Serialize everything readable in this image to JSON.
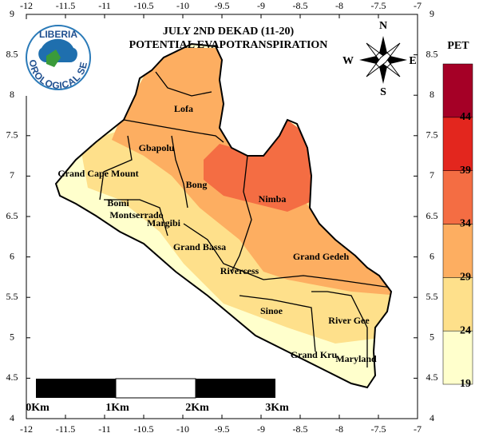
{
  "title": [
    "JULY 2ND DEKAD (11-20)",
    "POTENTIAL EVAPOTRANSPIRATION"
  ],
  "logo": {
    "name": "LIBERIA",
    "subtitle": "METEOROLOGICAL SERVICE"
  },
  "compass": {
    "north": "N",
    "east": "E",
    "south": "S",
    "west": "W"
  },
  "axes": {
    "lon_ticks": [
      -12,
      -11.5,
      -11,
      -10.5,
      -10,
      -9.5,
      -9,
      -8.5,
      -8,
      -7.5,
      -7
    ],
    "lat_ticks": [
      9,
      8.5,
      8,
      7.5,
      7,
      6.5,
      6,
      5.5,
      5,
      4.5,
      4
    ]
  },
  "counties": [
    "Lofa",
    "Gbapolu",
    "Grand Cape Mount",
    "Bong",
    "Nimba",
    "Bomi",
    "Montserrado",
    "Margibi",
    "Grand Bassa",
    "Rivercess",
    "Grand Gedeh",
    "Sinoe",
    "River Gee",
    "Grand Kru",
    "Maryland"
  ],
  "legend": {
    "title": "PET",
    "levels": [
      19,
      24,
      29,
      34,
      39,
      44
    ],
    "colors": [
      "#ffffcc",
      "#fee08b",
      "#fdae61",
      "#f46d43",
      "#e3261e",
      "#a50026"
    ]
  },
  "scale_bar": [
    "0Km",
    "1Km",
    "2Km",
    "3Km"
  ]
}
